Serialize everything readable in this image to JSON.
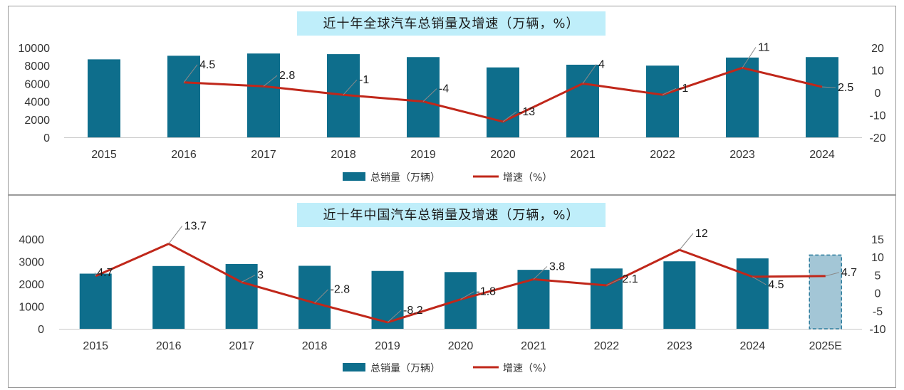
{
  "colors": {
    "bar": "#0e6e8c",
    "bar_forecast": "#a3c6d6",
    "bar_forecast_stroke": "#2e7d9e",
    "line": "#c0271a",
    "title_bg": "#bfeefa",
    "frame": "#9a9a9a",
    "leader": "#8a8a8a"
  },
  "chart_data": [
    {
      "type": "bar+line",
      "title": "近十年全球汽车总销量及增速（万辆，%）",
      "categories": [
        "2015",
        "2016",
        "2017",
        "2018",
        "2019",
        "2020",
        "2021",
        "2022",
        "2023",
        "2024"
      ],
      "series": [
        {
          "name": "总销量（万辆）",
          "type": "bar",
          "axis": "left",
          "values": [
            8700,
            9100,
            9350,
            9280,
            8950,
            7800,
            8100,
            8000,
            8900,
            8950
          ]
        },
        {
          "name": "增速（%）",
          "type": "line",
          "axis": "right",
          "values": [
            null,
            4.5,
            2.8,
            -1,
            -4,
            -13,
            4,
            -1,
            11,
            2.5
          ],
          "labels": [
            "",
            "4.5",
            "2.8",
            "-1",
            "-4",
            "-13",
            "4",
            "-1",
            "11",
            "2.5"
          ]
        }
      ],
      "y_left": {
        "min": 0,
        "max": 10000,
        "ticks": [
          "0",
          "2000",
          "4000",
          "6000",
          "8000",
          "10000"
        ]
      },
      "y_right": {
        "min": -20,
        "max": 20,
        "ticks": [
          "-20",
          "-10",
          "0",
          "10",
          "20"
        ]
      },
      "legend": [
        "总销量（万辆）",
        "增速（%）"
      ],
      "legend_position": "bottom"
    },
    {
      "type": "bar+line",
      "title": "近十年中国汽车总销量及增速（万辆，%）",
      "categories": [
        "2015",
        "2016",
        "2017",
        "2018",
        "2019",
        "2020",
        "2021",
        "2022",
        "2023",
        "2024",
        "2025E"
      ],
      "series": [
        {
          "name": "总销量（万辆）",
          "type": "bar",
          "axis": "left",
          "values": [
            2460,
            2800,
            2890,
            2810,
            2580,
            2530,
            2630,
            2690,
            3010,
            3140,
            3290
          ],
          "forecast_index": 10
        },
        {
          "name": "增速（%）",
          "type": "line",
          "axis": "right",
          "values": [
            4.7,
            13.7,
            3,
            -2.8,
            -8.2,
            -1.8,
            3.8,
            2.1,
            12,
            4.5,
            4.7
          ],
          "labels": [
            "4.7",
            "13.7",
            "3",
            "-2.8",
            "-8.2",
            "-1.8",
            "3.8",
            "2.1",
            "12",
            "4.5",
            "4.7"
          ]
        }
      ],
      "y_left": {
        "min": 0,
        "max": 4000,
        "ticks": [
          "0",
          "1000",
          "2000",
          "3000",
          "4000"
        ]
      },
      "y_right": {
        "min": -10,
        "max": 15,
        "ticks": [
          "-10",
          "-5",
          "0",
          "5",
          "10",
          "15"
        ]
      },
      "legend": [
        "总销量（万辆）",
        "增速（%）"
      ],
      "legend_position": "bottom"
    }
  ]
}
